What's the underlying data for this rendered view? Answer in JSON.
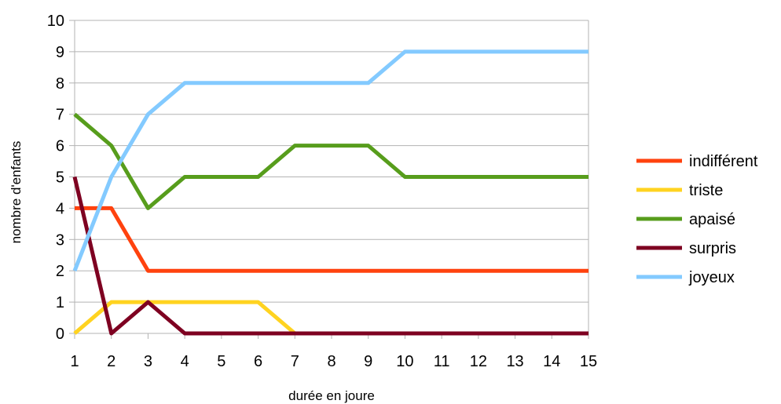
{
  "chart_data": {
    "type": "line",
    "title": "",
    "xlabel": "durée en joure",
    "ylabel": "nombre d'enfants",
    "x": [
      1,
      2,
      3,
      4,
      5,
      6,
      7,
      8,
      9,
      10,
      11,
      12,
      13,
      14,
      15
    ],
    "ylim": [
      0,
      10
    ],
    "yticks": [
      0,
      1,
      2,
      3,
      4,
      5,
      6,
      7,
      8,
      9,
      10
    ],
    "grid": true,
    "legend_position": "right",
    "series": [
      {
        "name": "indifférent",
        "color": "#ff420e",
        "values": [
          4,
          4,
          2,
          2,
          2,
          2,
          2,
          2,
          2,
          2,
          2,
          2,
          2,
          2,
          2
        ]
      },
      {
        "name": "triste",
        "color": "#ffd320",
        "values": [
          0,
          1,
          1,
          1,
          1,
          1,
          0,
          0,
          0,
          0,
          0,
          0,
          0,
          0,
          0
        ]
      },
      {
        "name": "apaisé",
        "color": "#579d1c",
        "values": [
          7,
          6,
          4,
          5,
          5,
          5,
          6,
          6,
          6,
          5,
          5,
          5,
          5,
          5,
          5
        ]
      },
      {
        "name": "surpris",
        "color": "#7e0021",
        "values": [
          5,
          0,
          1,
          0,
          0,
          0,
          0,
          0,
          0,
          0,
          0,
          0,
          0,
          0,
          0
        ]
      },
      {
        "name": "joyeux",
        "color": "#83caff",
        "values": [
          2,
          5,
          7,
          8,
          8,
          8,
          8,
          8,
          8,
          9,
          9,
          9,
          9,
          9,
          9
        ]
      }
    ]
  }
}
